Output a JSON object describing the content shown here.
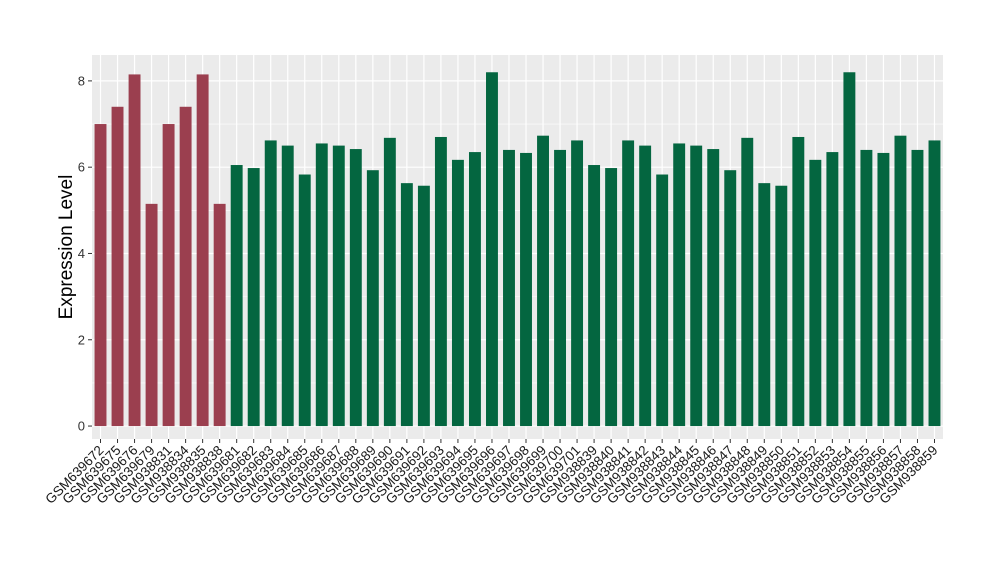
{
  "chart_data": {
    "type": "bar",
    "title": "",
    "xlabel": "",
    "ylabel": "Expression Level",
    "ylim": [
      -0.3,
      8.6
    ],
    "yticks": [
      0,
      2,
      4,
      6,
      8
    ],
    "grid": true,
    "legend": "none",
    "colors": {
      "group_a": "#9b3f4f",
      "group_b": "#046640",
      "panel_bg": "#ebebeb",
      "grid": "#ffffff"
    },
    "categories": [
      "GSM639672",
      "GSM639675",
      "GSM639676",
      "GSM639679",
      "GSM938831",
      "GSM938834",
      "GSM938835",
      "GSM938838",
      "GSM639681",
      "GSM639682",
      "GSM639683",
      "GSM639684",
      "GSM639685",
      "GSM639686",
      "GSM639687",
      "GSM639688",
      "GSM639689",
      "GSM639690",
      "GSM639691",
      "GSM639692",
      "GSM639693",
      "GSM639694",
      "GSM639695",
      "GSM639696",
      "GSM639697",
      "GSM639698",
      "GSM639699",
      "GSM639700",
      "GSM639701",
      "GSM938839",
      "GSM938840",
      "GSM938841",
      "GSM938842",
      "GSM938843",
      "GSM938844",
      "GSM938845",
      "GSM938846",
      "GSM938847",
      "GSM938848",
      "GSM938849",
      "GSM938850",
      "GSM938851",
      "GSM938852",
      "GSM938853",
      "GSM938854",
      "GSM938855",
      "GSM938856",
      "GSM938857",
      "GSM938858",
      "GSM938859"
    ],
    "values": [
      7.0,
      7.4,
      8.15,
      5.15,
      7.0,
      7.4,
      8.15,
      5.15,
      6.05,
      5.98,
      6.62,
      6.5,
      5.83,
      6.55,
      6.5,
      6.42,
      5.93,
      6.68,
      5.63,
      5.57,
      6.7,
      6.17,
      6.35,
      8.2,
      6.4,
      6.33,
      6.73,
      6.4,
      6.62,
      6.05,
      5.98,
      6.62,
      6.5,
      5.83,
      6.55,
      6.5,
      6.42,
      5.93,
      6.68,
      5.63,
      5.57,
      6.7,
      6.17,
      6.35,
      8.2,
      6.4,
      6.33,
      6.73,
      6.4,
      6.62
    ],
    "groups": [
      "a",
      "a",
      "a",
      "a",
      "a",
      "a",
      "a",
      "a",
      "b",
      "b",
      "b",
      "b",
      "b",
      "b",
      "b",
      "b",
      "b",
      "b",
      "b",
      "b",
      "b",
      "b",
      "b",
      "b",
      "b",
      "b",
      "b",
      "b",
      "b",
      "b",
      "b",
      "b",
      "b",
      "b",
      "b",
      "b",
      "b",
      "b",
      "b",
      "b",
      "b",
      "b",
      "b",
      "b",
      "b",
      "b",
      "b",
      "b",
      "b",
      "b"
    ]
  }
}
